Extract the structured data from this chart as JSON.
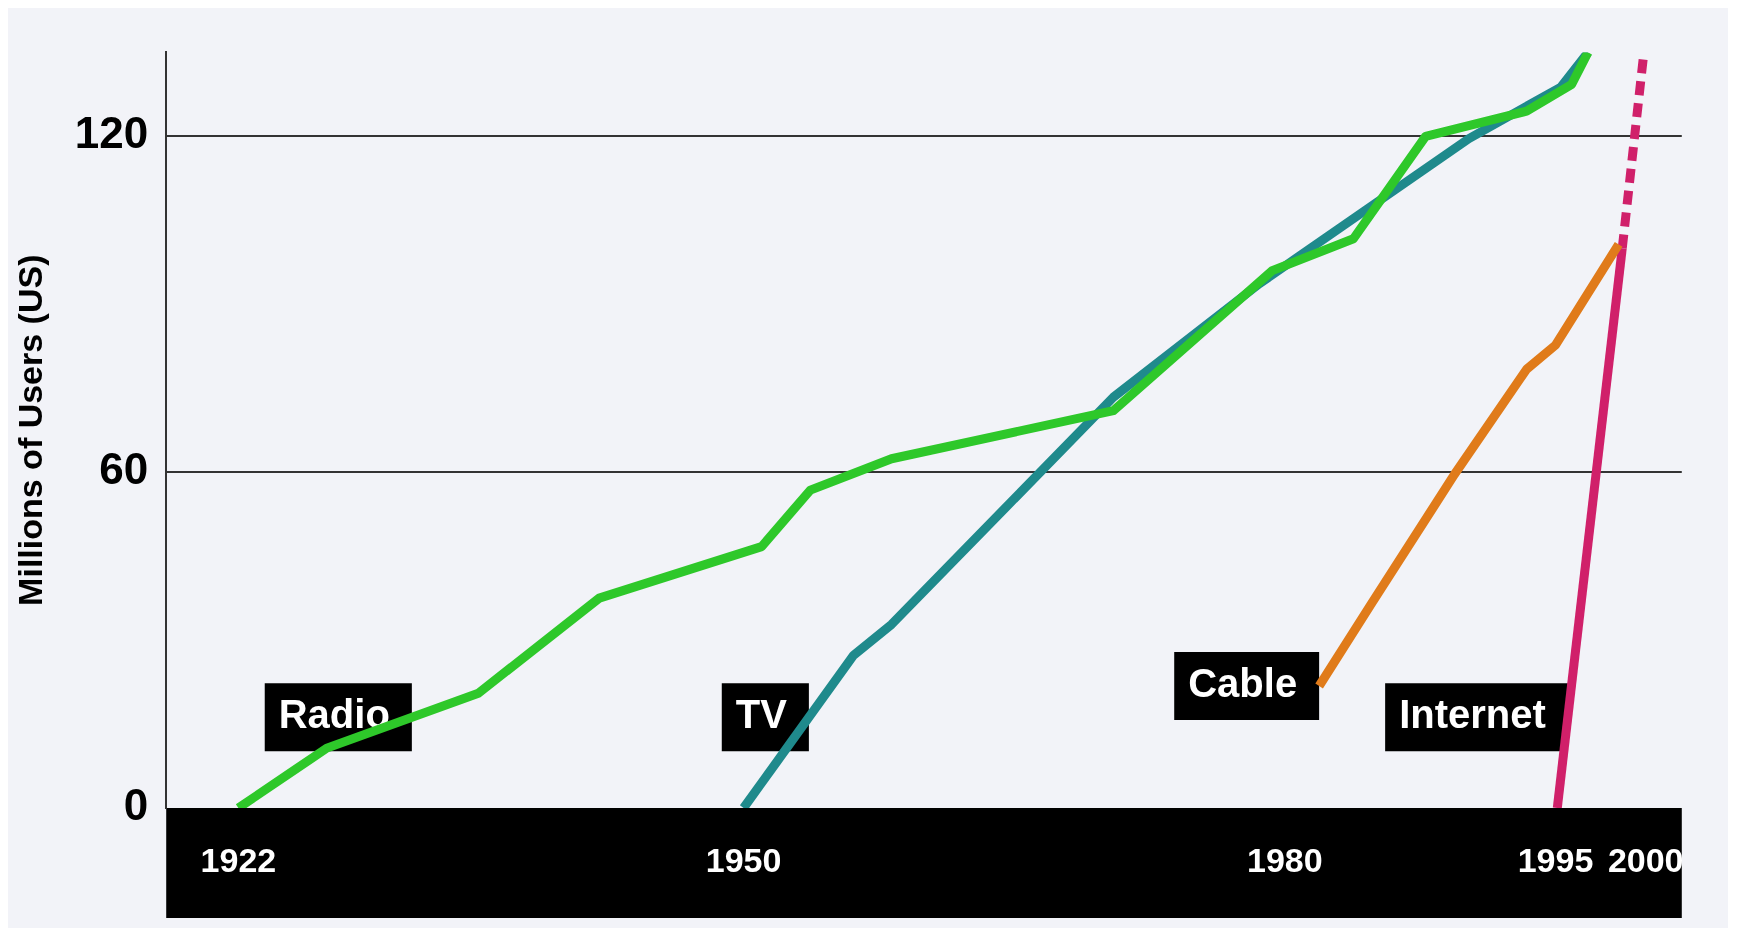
{
  "chart_data": {
    "type": "line",
    "ylabel": "Millions of Users (US)",
    "xlim": [
      1918,
      2002
    ],
    "xticks": [
      1922,
      1950,
      1980,
      1995,
      2000
    ],
    "ylim": [
      0,
      135
    ],
    "yticks": [
      0,
      60,
      120
    ],
    "grid": "y",
    "legend": false,
    "series": [
      {
        "name": "Radio",
        "color": "#2ec82a",
        "x": [
          1922,
          1926.9,
          1935.3,
          1942,
          1951,
          1953.7,
          1958.2,
          1970.5,
          1979.3,
          1983.8,
          1987.8,
          1993.4,
          1995.9,
          1996.8
        ],
        "values": [
          0,
          10.7,
          20.5,
          37.5,
          46.7,
          56.8,
          62.4,
          71,
          96,
          101.7,
          120,
          124.5,
          129.3,
          135
        ]
      },
      {
        "name": "TV",
        "color": "#1f8a8c",
        "x": [
          1950,
          1956.1,
          1958.2,
          1970.5,
          1978.6,
          1990.2,
          1995.3,
          1996.8
        ],
        "values": [
          0,
          27.3,
          32.8,
          73.4,
          93.7,
          119.6,
          128.8,
          135
        ]
      },
      {
        "name": "Cable",
        "color": "#e07b1a",
        "x": [
          1981.9,
          1984.8,
          1989.4,
          1993.4,
          1995,
          1998.5
        ],
        "values": [
          21.8,
          36.5,
          59.6,
          78.4,
          82.7,
          100.7
        ]
      },
      {
        "name": "Internet",
        "color": "#d0206a",
        "x": [
          1995.1,
          1998.7
        ],
        "values": [
          0,
          100
        ]
      },
      {
        "color": "#d0206a",
        "line_style": "dashed",
        "x": [
          1998.7,
          1999.9
        ],
        "values": [
          100,
          135
        ]
      }
    ]
  }
}
